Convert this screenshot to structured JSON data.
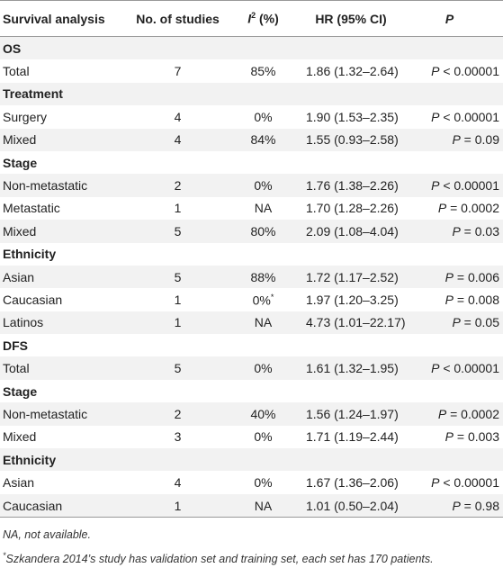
{
  "table": {
    "header": [
      "Survival analysis",
      "No. of studies",
      {
        "italic": "I",
        "sup": "2",
        "text": " (%)"
      },
      "HR (95% CI)",
      "P"
    ],
    "rows": [
      {
        "label": "OS"
      },
      {
        "label": "Total",
        "studies": "7",
        "i2": "85%",
        "hr": "1.86 (1.32–2.64)",
        "p": {
          "symbol": "P",
          "text": " < 0.00001"
        }
      },
      {
        "label": "Treatment"
      },
      {
        "label": "Surgery",
        "studies": "4",
        "i2": "0%",
        "hr": "1.90 (1.53–2.35)",
        "p": {
          "symbol": "P",
          "text": " < 0.00001"
        }
      },
      {
        "label": "Mixed",
        "studies": "4",
        "i2": "84%",
        "hr": "1.55 (0.93–2.58)",
        "p": {
          "symbol": "P",
          "text": " = 0.09"
        }
      },
      {
        "label": "Stage"
      },
      {
        "label": "Non-metastatic",
        "studies": "2",
        "i2": "0%",
        "hr": "1.76 (1.38–2.26)",
        "p": {
          "symbol": "P",
          "text": " < 0.00001"
        }
      },
      {
        "label": "Metastatic",
        "studies": "1",
        "i2": "NA",
        "hr": "1.70 (1.28–2.26)",
        "p": {
          "symbol": "P",
          "text": " = 0.0002"
        }
      },
      {
        "label": "Mixed",
        "studies": "5",
        "i2": "80%",
        "hr": "2.09 (1.08–4.04)",
        "p": {
          "symbol": "P",
          "text": " = 0.03"
        }
      },
      {
        "label": "Ethnicity"
      },
      {
        "label": "Asian",
        "studies": "5",
        "i2": "88%",
        "hr": "1.72 (1.17–2.52)",
        "p": {
          "symbol": "P",
          "text": " = 0.006"
        }
      },
      {
        "label": "Caucasian",
        "studies": "1",
        "i2": "0%",
        "i2_mark": "*",
        "hr": "1.97 (1.20–3.25)",
        "p": {
          "symbol": "P",
          "text": " = 0.008"
        }
      },
      {
        "label": "Latinos",
        "studies": "1",
        "i2": "NA",
        "hr": "4.73 (1.01–22.17)",
        "p": {
          "symbol": "P",
          "text": " = 0.05"
        }
      },
      {
        "label": "DFS"
      },
      {
        "label": "Total",
        "studies": "5",
        "i2": "0%",
        "hr": "1.61 (1.32–1.95)",
        "p": {
          "symbol": "P",
          "text": " < 0.00001"
        }
      },
      {
        "label": "Stage"
      },
      {
        "label": "Non-metastatic",
        "studies": "2",
        "i2": "40%",
        "hr": "1.56 (1.24–1.97)",
        "p": {
          "symbol": "P",
          "text": " = 0.0002"
        }
      },
      {
        "label": "Mixed",
        "studies": "3",
        "i2": "0%",
        "hr": "1.71 (1.19–2.44)",
        "p": {
          "symbol": "P",
          "text": " = 0.003"
        }
      },
      {
        "label": "Ethnicity"
      },
      {
        "label": "Asian",
        "studies": "4",
        "i2": "0%",
        "hr": "1.67 (1.36–2.06)",
        "p": {
          "symbol": "P",
          "text": " < 0.00001"
        }
      },
      {
        "label": "Caucasian",
        "studies": "1",
        "i2": "NA",
        "hr": "1.01 (0.50–2.04)",
        "p": {
          "symbol": "P",
          "text": " = 0.98"
        }
      }
    ]
  },
  "footnotes": [
    {
      "text": "NA, not available."
    },
    {
      "mark": "*",
      "text": "Szkandera 2014’s study has validation set and training set, each set has 170 patients."
    }
  ]
}
